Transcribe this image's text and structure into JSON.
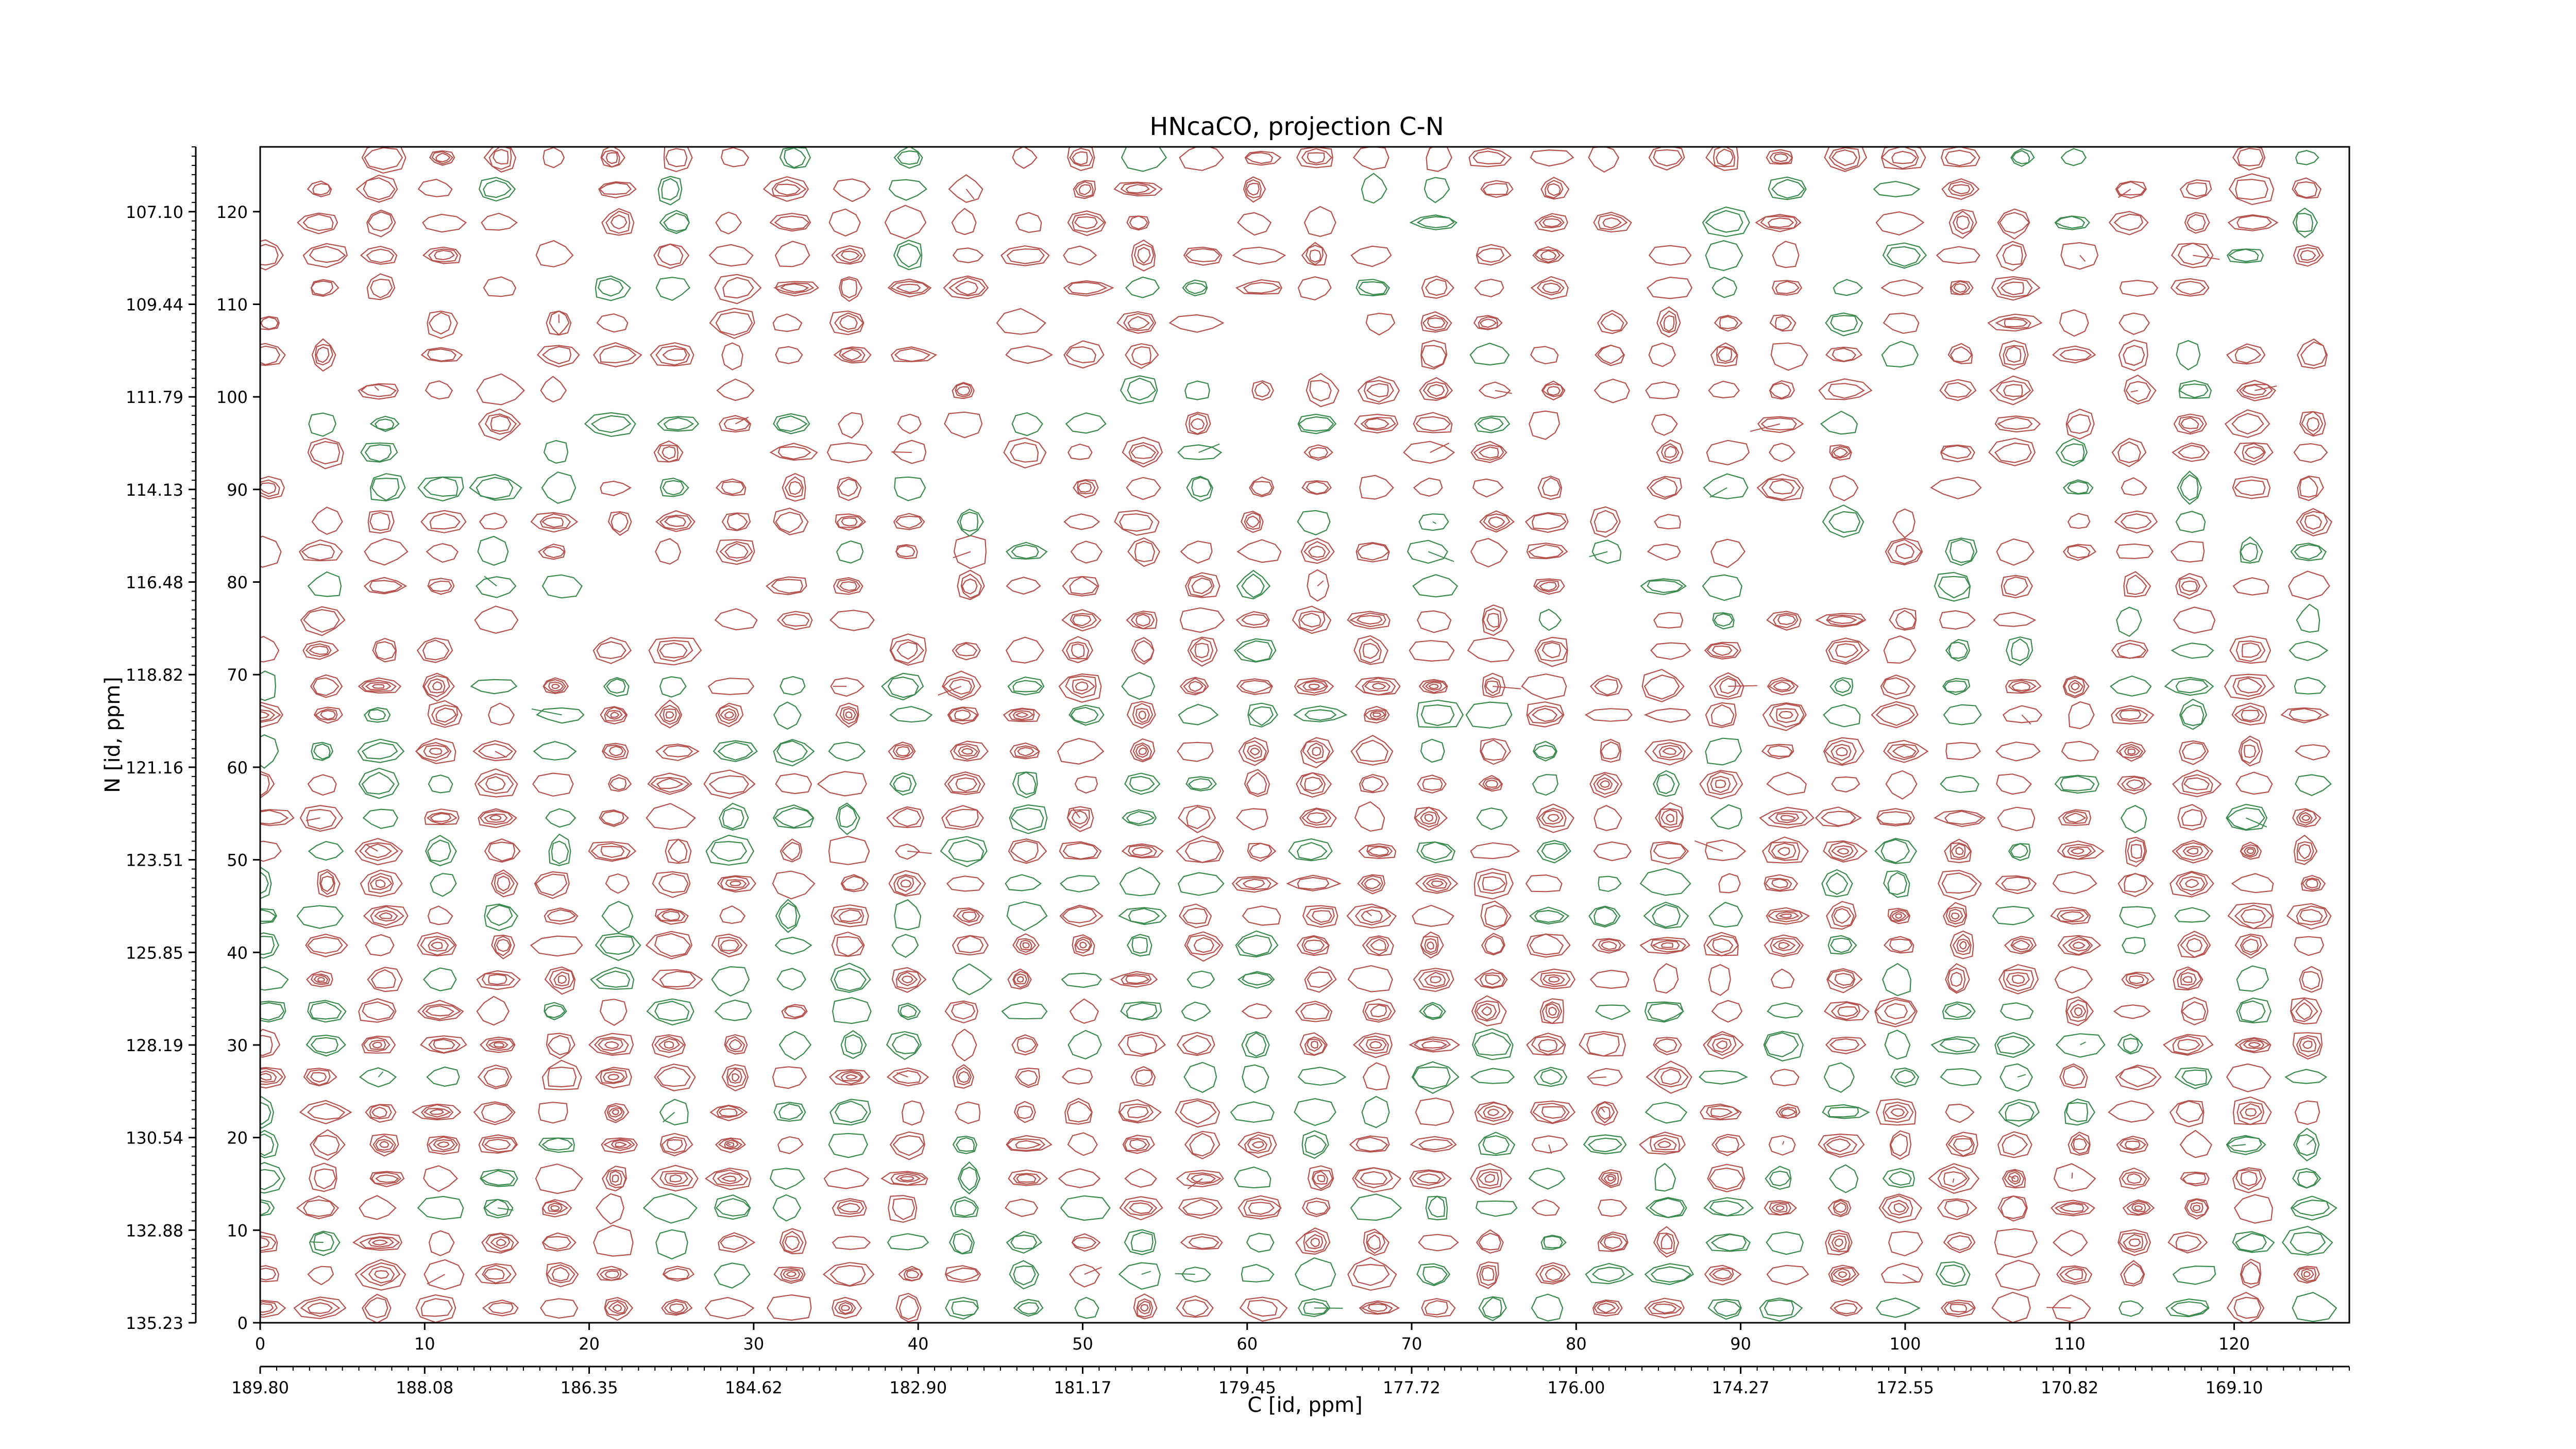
{
  "chart_data": {
    "type": "contour",
    "title": "HNcaCO, projection C-N",
    "xlabel": "C [id, ppm]",
    "ylabel": "N [id, ppm]",
    "x_index_range": [
      0,
      127
    ],
    "y_index_range": [
      0,
      127
    ],
    "x_index_ticks": [
      {
        "value": 0,
        "label": "0"
      },
      {
        "value": 10,
        "label": "10"
      },
      {
        "value": 20,
        "label": "20"
      },
      {
        "value": 30,
        "label": "30"
      },
      {
        "value": 40,
        "label": "40"
      },
      {
        "value": 50,
        "label": "50"
      },
      {
        "value": 60,
        "label": "60"
      },
      {
        "value": 70,
        "label": "70"
      },
      {
        "value": 80,
        "label": "80"
      },
      {
        "value": 90,
        "label": "90"
      },
      {
        "value": 100,
        "label": "100"
      },
      {
        "value": 110,
        "label": "110"
      },
      {
        "value": 120,
        "label": "120"
      }
    ],
    "x_ppm_ticks": [
      {
        "value": 0,
        "label": "189.80"
      },
      {
        "value": 10,
        "label": "188.08"
      },
      {
        "value": 20,
        "label": "186.35"
      },
      {
        "value": 30,
        "label": "184.62"
      },
      {
        "value": 40,
        "label": "182.90"
      },
      {
        "value": 50,
        "label": "181.17"
      },
      {
        "value": 60,
        "label": "179.45"
      },
      {
        "value": 70,
        "label": "177.72"
      },
      {
        "value": 80,
        "label": "176.00"
      },
      {
        "value": 90,
        "label": "174.27"
      },
      {
        "value": 100,
        "label": "172.55"
      },
      {
        "value": 110,
        "label": "170.82"
      },
      {
        "value": 120,
        "label": "169.10"
      }
    ],
    "y_index_ticks": [
      {
        "value": 0,
        "label": "0"
      },
      {
        "value": 10,
        "label": "10"
      },
      {
        "value": 20,
        "label": "20"
      },
      {
        "value": 30,
        "label": "30"
      },
      {
        "value": 40,
        "label": "40"
      },
      {
        "value": 50,
        "label": "50"
      },
      {
        "value": 60,
        "label": "60"
      },
      {
        "value": 70,
        "label": "70"
      },
      {
        "value": 80,
        "label": "80"
      },
      {
        "value": 90,
        "label": "90"
      },
      {
        "value": 100,
        "label": "100"
      },
      {
        "value": 110,
        "label": "110"
      },
      {
        "value": 120,
        "label": "120"
      }
    ],
    "y_ppm_ticks": [
      {
        "value": 0,
        "label": "135.23"
      },
      {
        "value": 10,
        "label": "132.88"
      },
      {
        "value": 20,
        "label": "130.54"
      },
      {
        "value": 30,
        "label": "128.19"
      },
      {
        "value": 40,
        "label": "125.85"
      },
      {
        "value": 50,
        "label": "123.51"
      },
      {
        "value": 60,
        "label": "121.16"
      },
      {
        "value": 70,
        "label": "118.82"
      },
      {
        "value": 80,
        "label": "116.48"
      },
      {
        "value": 90,
        "label": "114.13"
      },
      {
        "value": 100,
        "label": "111.79"
      },
      {
        "value": 110,
        "label": "109.44"
      },
      {
        "value": 120,
        "label": "107.10"
      }
    ],
    "positive_contour_color": "#b5524d",
    "negative_contour_color": "#3a8a4e",
    "peak_grid_spacing_index": 3.55,
    "grid": false
  }
}
